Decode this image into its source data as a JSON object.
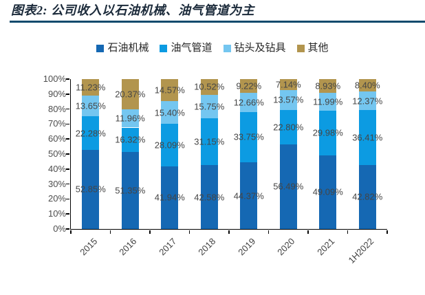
{
  "header": {
    "title": "图表2: 公司收入以石油机械、油气管道为主"
  },
  "chart_data": {
    "type": "bar",
    "stacked": true,
    "percent_stacked": true,
    "title": "",
    "xlabel": "",
    "ylabel": "",
    "ylim": [
      0,
      100
    ],
    "legend_position": "top",
    "grid": false,
    "label_suffix": "%",
    "y_ticks": [
      "100%",
      "90%",
      "80%",
      "70%",
      "60%",
      "50%",
      "40%",
      "30%",
      "20%",
      "10%",
      "0%"
    ],
    "categories": [
      "2015",
      "2016",
      "2017",
      "2018",
      "2019",
      "2020",
      "2021",
      "1H2022"
    ],
    "series": [
      {
        "name": "石油机械",
        "color": "#1568B3",
        "values": [
          52.85,
          51.35,
          41.94,
          42.58,
          44.37,
          56.49,
          49.09,
          42.82
        ]
      },
      {
        "name": "油气管道",
        "color": "#0C9BE2",
        "values": [
          22.28,
          16.32,
          28.09,
          31.15,
          33.75,
          22.8,
          29.98,
          36.41
        ]
      },
      {
        "name": "钻头及钻具",
        "color": "#74C6F0",
        "values": [
          13.65,
          11.96,
          15.4,
          15.75,
          12.66,
          13.57,
          11.99,
          12.37
        ]
      },
      {
        "name": "其他",
        "color": "#B2954E",
        "values": [
          11.23,
          20.37,
          14.57,
          10.52,
          9.22,
          7.14,
          8.93,
          8.4
        ]
      }
    ],
    "colors": {
      "title_text": "#1b2a3a",
      "title_rule": "#0e4a6d",
      "axis": "#000000",
      "tick_label": "#4d4d4d",
      "data_label": "#454545"
    }
  }
}
